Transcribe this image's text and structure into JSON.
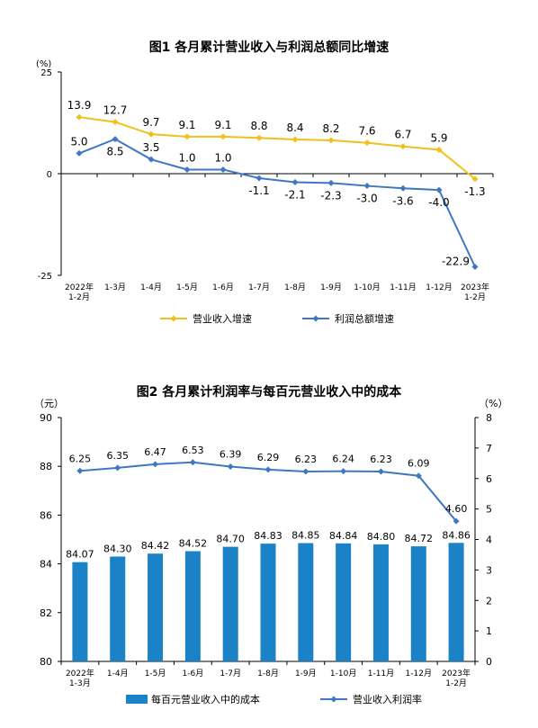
{
  "chart_data": [
    {
      "type": "line",
      "title": "图1 各月累计营业收入与利润总额同比增速",
      "y_unit": "(%)",
      "ylim": [
        -25,
        25
      ],
      "y_ticks": [
        "25",
        "0",
        "-25"
      ],
      "categories": [
        "2022年\n1-2月",
        "1-3月",
        "1-4月",
        "1-5月",
        "1-6月",
        "1-7月",
        "1-8月",
        "1-9月",
        "1-10月",
        "1-11月",
        "1-12月",
        "2023年\n1-2月"
      ],
      "series": [
        {
          "name": "营业收入增速",
          "color": "#f0c01c",
          "values": [
            13.9,
            12.7,
            9.7,
            9.1,
            9.1,
            8.8,
            8.4,
            8.2,
            7.6,
            6.7,
            5.9,
            -1.3
          ],
          "labels": [
            "13.9",
            "12.7",
            "9.7",
            "9.1",
            "9.1",
            "8.8",
            "8.4",
            "8.2",
            "7.6",
            "6.7",
            "5.9",
            "-1.3"
          ]
        },
        {
          "name": "利润总额增速",
          "color": "#3f77c2",
          "values": [
            5.0,
            8.5,
            3.5,
            1.0,
            1.0,
            -1.1,
            -2.1,
            -2.3,
            -3.0,
            -3.6,
            -4.0,
            -22.9
          ],
          "labels": [
            "5.0",
            "8.5",
            "3.5",
            "1.0",
            "1.0",
            "-1.1",
            "-2.1",
            "-2.3",
            "-3.0",
            "-3.6",
            "-4.0",
            "-22.9"
          ]
        }
      ],
      "legend_position": "bottom",
      "grid": false
    },
    {
      "type": "bar",
      "title": "图2 各月累计利润率与每百元营业收入中的成本",
      "y_left_unit": "（元）",
      "y_right_unit": "（%）",
      "ylim_left": [
        80,
        90
      ],
      "ylim_right": [
        0,
        8
      ],
      "y_left_ticks": [
        "90",
        "88",
        "86",
        "84",
        "82",
        "80"
      ],
      "y_right_ticks": [
        "8",
        "7",
        "6",
        "5",
        "4",
        "3",
        "2",
        "1",
        "0"
      ],
      "categories": [
        "2022年\n1-3月",
        "1-4月",
        "1-5月",
        "1-6月",
        "1-7月",
        "1-8月",
        "1-9月",
        "1-10月",
        "1-11月",
        "1-12月",
        "2023年\n1-2月"
      ],
      "series": [
        {
          "name": "每百元营业收入中的成本",
          "type": "bar",
          "axis": "left",
          "color": "#1b82c8",
          "values": [
            84.07,
            84.3,
            84.42,
            84.52,
            84.7,
            84.83,
            84.85,
            84.84,
            84.8,
            84.72,
            84.86
          ],
          "labels": [
            "84.07",
            "84.30",
            "84.42",
            "84.52",
            "84.70",
            "84.83",
            "84.85",
            "84.84",
            "84.80",
            "84.72",
            "84.86"
          ]
        },
        {
          "name": "营业收入利润率",
          "type": "line",
          "axis": "right",
          "color": "#3f77c2",
          "values": [
            6.25,
            6.35,
            6.47,
            6.53,
            6.39,
            6.29,
            6.23,
            6.24,
            6.23,
            6.09,
            4.6
          ],
          "labels": [
            "6.25",
            "6.35",
            "6.47",
            "6.53",
            "6.39",
            "6.29",
            "6.23",
            "6.24",
            "6.23",
            "6.09",
            "4.60"
          ]
        }
      ],
      "legend_position": "bottom",
      "grid": false
    }
  ]
}
